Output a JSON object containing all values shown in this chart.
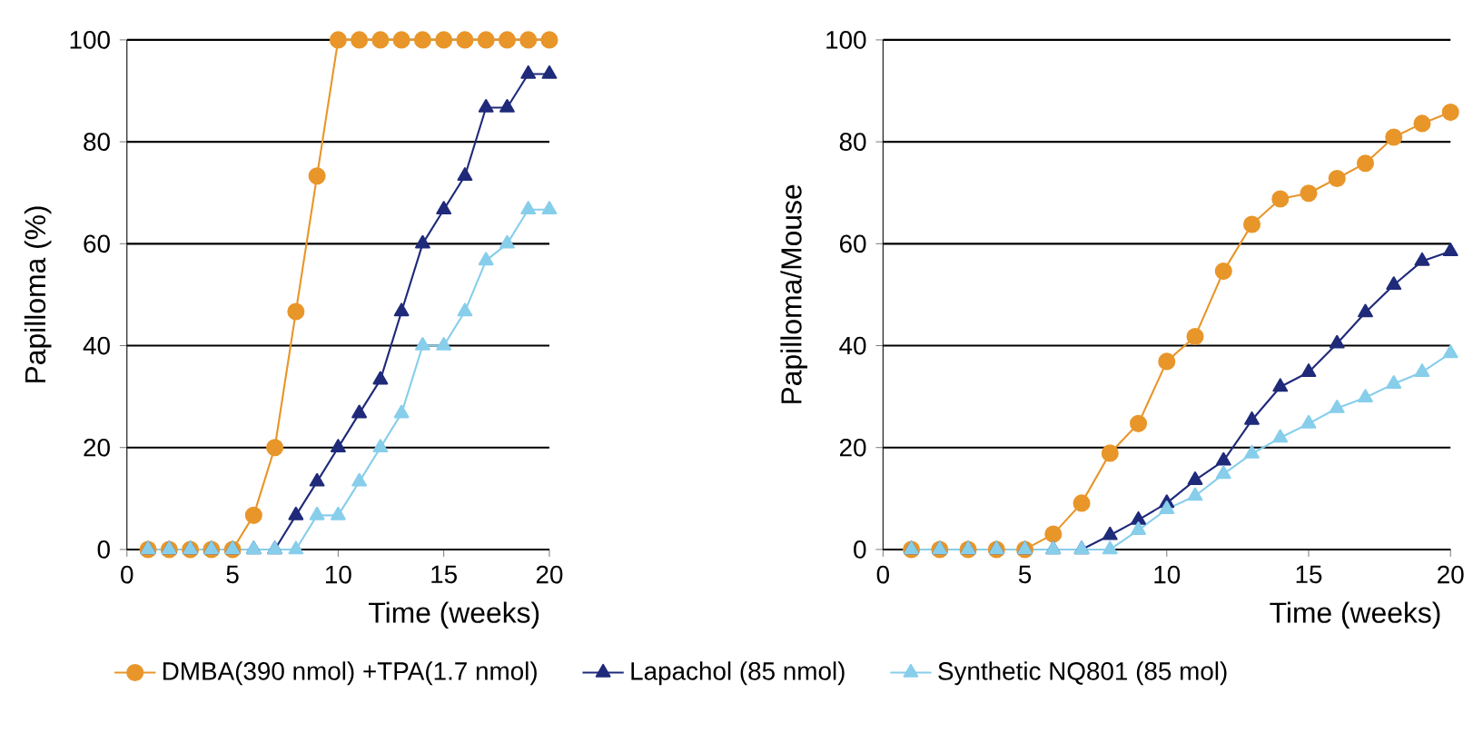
{
  "chart_data": [
    {
      "type": "line",
      "ylabel": "Papilloma (%)",
      "xlabel": "Time (weeks)",
      "xlim": [
        0,
        20
      ],
      "ylim": [
        0,
        100
      ],
      "xticks": [
        0,
        5,
        10,
        15,
        20
      ],
      "yticks": [
        0,
        20,
        40,
        60,
        80,
        100
      ],
      "grid": "y",
      "legend": "bottom",
      "x": [
        1,
        2,
        3,
        4,
        5,
        6,
        7,
        8,
        9,
        10,
        11,
        12,
        13,
        14,
        15,
        16,
        17,
        18,
        19,
        20
      ],
      "series": [
        {
          "name": "DMBA(390 nmol)  +TPA(1.7 nmol)",
          "color": "#e8962a",
          "marker": "circle",
          "values": [
            0,
            0,
            0,
            0,
            0,
            6.7,
            20,
            46.7,
            73.3,
            100,
            100,
            100,
            100,
            100,
            100,
            100,
            100,
            100,
            100,
            100
          ]
        },
        {
          "name": "Lapachol (85 nmol)",
          "color": "#1f2a7a",
          "marker": "triangle",
          "values": [
            0,
            0,
            0,
            0,
            0,
            0,
            0,
            6.7,
            13.3,
            20,
            26.7,
            33.3,
            46.7,
            60,
            66.7,
            73.3,
            86.7,
            86.7,
            93.3,
            93.3
          ]
        },
        {
          "name": "Synthetic NQ801 (85 mol)",
          "color": "#87ceeb",
          "marker": "triangle",
          "values": [
            0,
            0,
            0,
            0,
            0,
            0,
            0,
            0,
            6.7,
            6.7,
            13.3,
            20,
            26.7,
            40,
            40,
            46.7,
            56.7,
            60,
            66.7,
            66.7
          ]
        }
      ]
    },
    {
      "type": "line",
      "ylabel": "Papilloma/Mouse",
      "xlabel": "Time (weeks)",
      "xlim": [
        0,
        20
      ],
      "ylim": [
        0,
        100
      ],
      "xticks": [
        0,
        5,
        10,
        15,
        20
      ],
      "yticks": [
        0,
        20,
        40,
        60,
        80,
        100
      ],
      "grid": "y",
      "x": [
        1,
        2,
        3,
        4,
        5,
        6,
        7,
        8,
        9,
        10,
        11,
        12,
        13,
        14,
        15,
        16,
        17,
        18,
        19,
        20
      ],
      "series": [
        {
          "color": "#e8962a",
          "marker": "circle",
          "values": [
            0,
            0,
            0,
            0,
            0,
            3,
            9.1,
            18.9,
            24.7,
            36.9,
            41.8,
            54.6,
            63.8,
            68.8,
            69.9,
            72.8,
            75.8,
            80.9,
            83.6,
            85.8
          ]
        },
        {
          "color": "#1f2a7a",
          "marker": "triangle",
          "values": [
            0,
            0,
            0,
            0,
            0,
            0,
            0,
            2.8,
            5.8,
            9.1,
            13.6,
            17.4,
            25.4,
            31.9,
            34.8,
            40.4,
            46.5,
            51.9,
            56.6,
            58.5
          ]
        },
        {
          "color": "#87ceeb",
          "marker": "triangle",
          "values": [
            0,
            0,
            0,
            0,
            0,
            0,
            0,
            0,
            3.8,
            7.9,
            10.5,
            14.8,
            18.8,
            21.9,
            24.7,
            27.7,
            29.8,
            32.5,
            34.8,
            38.5
          ]
        }
      ]
    }
  ]
}
